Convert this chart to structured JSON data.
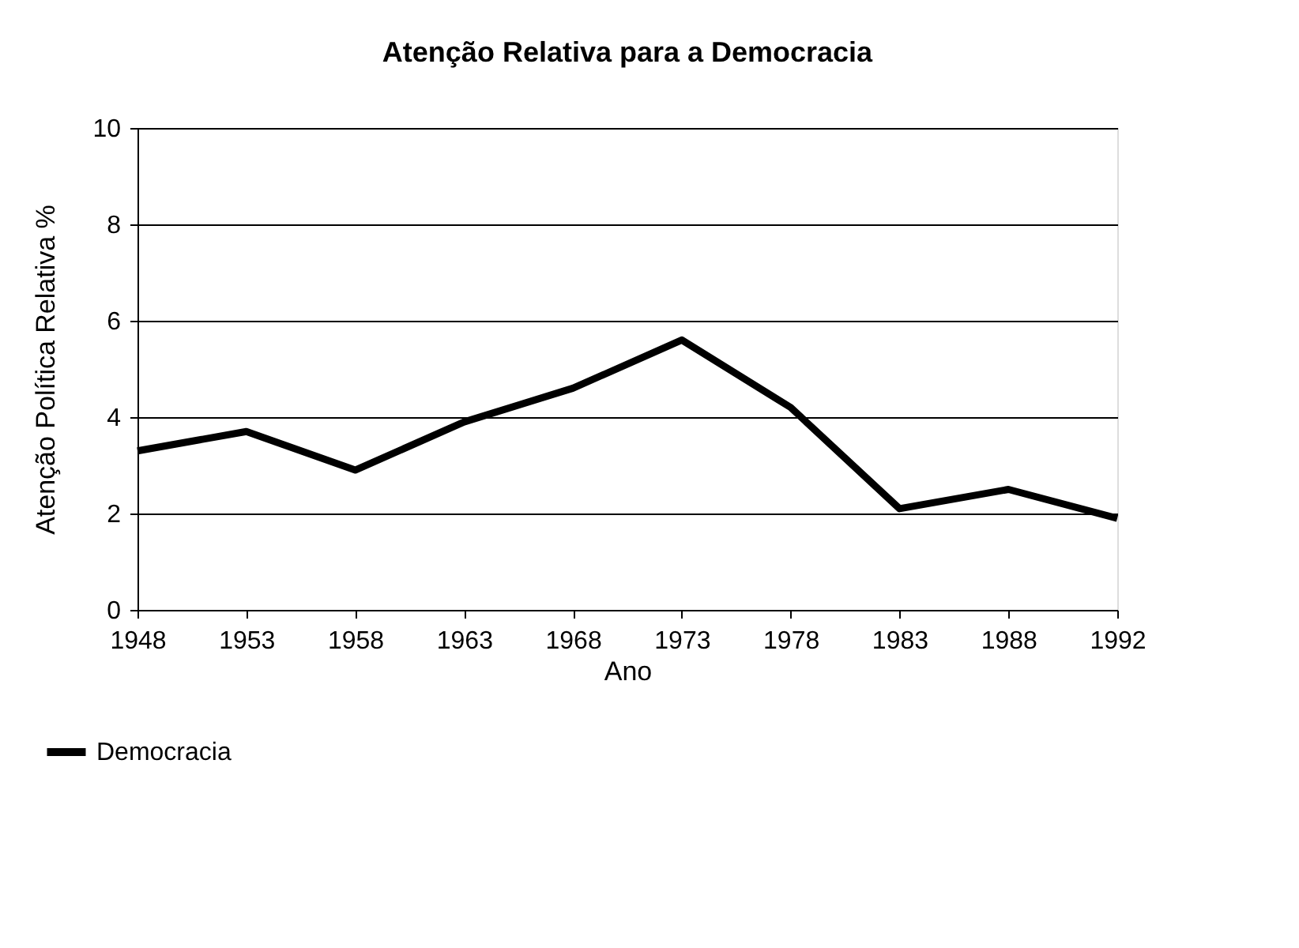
{
  "chart_data": {
    "type": "line",
    "title": "Atenção Relativa para a Democracia",
    "xlabel": "Ano",
    "ylabel": "Atenção Política Relativa %",
    "categories": [
      "1948",
      "1953",
      "1958",
      "1963",
      "1968",
      "1973",
      "1978",
      "1983",
      "1988",
      "1992"
    ],
    "series": [
      {
        "name": "Democracia",
        "color": "#000000",
        "values": [
          3.3,
          3.7,
          2.9,
          3.9,
          4.6,
          5.6,
          4.2,
          2.1,
          2.5,
          1.9
        ]
      }
    ],
    "ylim": [
      0,
      10
    ],
    "yticks": [
      0,
      2,
      4,
      6,
      8,
      10
    ],
    "grid": "y",
    "legend": "bottom left",
    "marker": "none",
    "line_style": "solid"
  }
}
